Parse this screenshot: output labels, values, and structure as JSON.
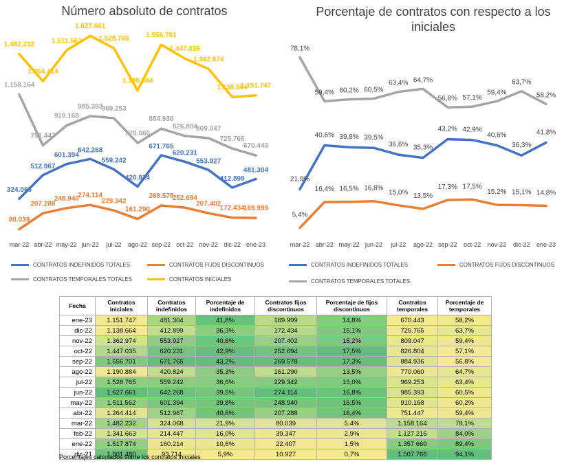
{
  "chart_data": [
    {
      "type": "line",
      "title": "Número absoluto de contratos",
      "categories": [
        "mar-22",
        "abr-22",
        "may-22",
        "jun-22",
        "jul-22",
        "ago-22",
        "sep-22",
        "oct-22",
        "nov-22",
        "dic-22",
        "ene-23"
      ],
      "series": [
        {
          "name": "CONTRATOS INDEFINIDOS TOTALES",
          "color": "#4472C4",
          "values": [
            324068,
            512967,
            601394,
            642268,
            559242,
            420824,
            671765,
            620231,
            553927,
            412899,
            481304
          ],
          "labels": [
            "324.068",
            "512.967",
            "601.394",
            "642.268",
            "559.242",
            "420.824",
            "671.765",
            "620.231",
            "553.927",
            "412.899",
            "481.304"
          ]
        },
        {
          "name": "CONTRATOS FIJOS DISCONTINUOS",
          "color": "#ED7D31",
          "values": [
            80039,
            207288,
            248940,
            274114,
            229342,
            161290,
            269578,
            252694,
            207402,
            172434,
            169999
          ],
          "labels": [
            "80.039",
            "207.288",
            "248.940",
            "274.114",
            "229.342",
            "161.290",
            "269.578",
            "252.694",
            "207.402",
            "172.434",
            "169.999"
          ]
        },
        {
          "name": "CONTRATOS TEMPORALES TOTALES",
          "color": "#A5A5A5",
          "values": [
            1158164,
            751447,
            910168,
            985393,
            969253,
            770060,
            884936,
            826804,
            809047,
            725765,
            670443
          ],
          "labels": [
            "1.158.164",
            "751.447",
            "910.168",
            "985.393",
            "969.253",
            "770.060",
            "884.936",
            "826.804",
            "809.047",
            "725.765",
            "670.443"
          ]
        },
        {
          "name": "CONTRATOS INICIALES",
          "color": "#FFC000",
          "values": [
            1482232,
            1264414,
            1511562,
            1627661,
            1528765,
            1190884,
            1556701,
            1447035,
            1362974,
            1138664,
            1151747
          ],
          "labels": [
            "1.482.232",
            "1.264.414",
            "1.511.562",
            "1.627.661",
            "1.528.765",
            "1.190.884",
            "1.556.701",
            "1.447.035",
            "1.362.974",
            "1.138.664",
            "1.151.747"
          ]
        }
      ],
      "ylim": [
        0,
        1750000
      ],
      "grid": false,
      "legend": "bottom"
    },
    {
      "type": "line",
      "title": "Porcentaje de contratos con respecto a los iniciales",
      "categories": [
        "mar-22",
        "abr-22",
        "may-22",
        "jun-22",
        "jul-22",
        "ago-22",
        "sep-22",
        "oct-22",
        "nov-22",
        "dic-22",
        "ene-23"
      ],
      "series": [
        {
          "name": "CONTRATOS INDEFINIDOS TOTALES",
          "color": "#4472C4",
          "values": [
            21.9,
            40.6,
            39.8,
            39.5,
            36.6,
            35.3,
            43.2,
            42.9,
            40.6,
            36.3,
            41.8
          ],
          "labels": [
            "21,9%",
            "40,6%",
            "39,8%",
            "39,5%",
            "36,6%",
            "35,3%",
            "43,2%",
            "42,9%",
            "40,6%",
            "36,3%",
            "41,8%"
          ]
        },
        {
          "name": "CONTRATOS FIJOS DISCONTINUOS",
          "color": "#ED7D31",
          "values": [
            5.4,
            16.4,
            16.5,
            16.8,
            15.0,
            13.5,
            17.3,
            17.5,
            15.2,
            15.1,
            14.8
          ],
          "labels": [
            "5,4%",
            "16,4%",
            "16,5%",
            "16,8%",
            "15,0%",
            "13,5%",
            "17,3%",
            "17,5%",
            "15,2%",
            "15,1%",
            "14,8%"
          ]
        },
        {
          "name": "CONTRATOS TEMPORALES TOTALES",
          "color": "#A5A5A5",
          "values": [
            78.1,
            59.4,
            60.2,
            60.5,
            63.4,
            64.7,
            56.8,
            57.1,
            59.4,
            63.7,
            58.2
          ],
          "labels": [
            "78,1%",
            "59,4%",
            "60,2%",
            "60,5%",
            "63,4%",
            "64,7%",
            "56,8%",
            "57,1%",
            "59,4%",
            "63,7%",
            "58,2%"
          ]
        }
      ],
      "ylim": [
        0,
        85
      ],
      "grid": false,
      "legend": "bottom"
    },
    {
      "type": "table",
      "headers": [
        "Fecha",
        "Contratos iniciales",
        "Contratos indefinidos",
        "Porcentaje de indefinidos",
        "Contratos fijos discontinuos",
        "Porcentaje de fijos discontinuos",
        "Contratos temporales",
        "Porcentaje de temporales"
      ],
      "rows": [
        [
          "ene-23",
          "1.151.747",
          "481.304",
          "41,8%",
          "169.999",
          "14,8%",
          "670.443",
          "58,2%"
        ],
        [
          "dic-22",
          "1.138.664",
          "412.899",
          "36,3%",
          "172.434",
          "15,1%",
          "725.765",
          "63,7%"
        ],
        [
          "nov-22",
          "1.362.974",
          "553.927",
          "40,6%",
          "207.402",
          "15,2%",
          "809.047",
          "59,4%"
        ],
        [
          "oct-22",
          "1.447.035",
          "620.231",
          "42,9%",
          "252.694",
          "17,5%",
          "826.804",
          "57,1%"
        ],
        [
          "sep-22",
          "1.556.701",
          "671.765",
          "43,2%",
          "269.578",
          "17,3%",
          "884.936",
          "56,8%"
        ],
        [
          "ago-22",
          "1.190.884",
          "420.824",
          "35,3%",
          "161.290",
          "13,5%",
          "770.060",
          "64,7%"
        ],
        [
          "jul-22",
          "1.528.765",
          "559.242",
          "36,6%",
          "229.342",
          "15,0%",
          "969.253",
          "63,4%"
        ],
        [
          "jun-22",
          "1.627.661",
          "642.268",
          "39,5%",
          "274.114",
          "16,8%",
          "985.393",
          "60,5%"
        ],
        [
          "may-22",
          "1.511.562",
          "601.394",
          "39,8%",
          "248.940",
          "16,5%",
          "910.168",
          "60,2%"
        ],
        [
          "abr-22",
          "1.264.414",
          "512.967",
          "40,6%",
          "207.288",
          "16,4%",
          "751.447",
          "59,4%"
        ],
        [
          "mar-22",
          "1.482.232",
          "324.068",
          "21,9%",
          "80.039",
          "5,4%",
          "1.158.164",
          "78,1%"
        ],
        [
          "feb-22",
          "1.341.663",
          "214.447",
          "16,0%",
          "39.347",
          "2,9%",
          "1.127.216",
          "84,0%"
        ],
        [
          "ene-22",
          "1.517.874",
          "160.214",
          "10,6%",
          "22.407",
          "1,5%",
          "1.357.660",
          "89,4%"
        ],
        [
          "dic-21",
          "1.601.480",
          "93.714",
          "5,9%",
          "10.927",
          "0,7%",
          "1.507.766",
          "94,1%"
        ]
      ],
      "footnote": "Porcentajes calculados sobre los contratos iniciales"
    }
  ]
}
